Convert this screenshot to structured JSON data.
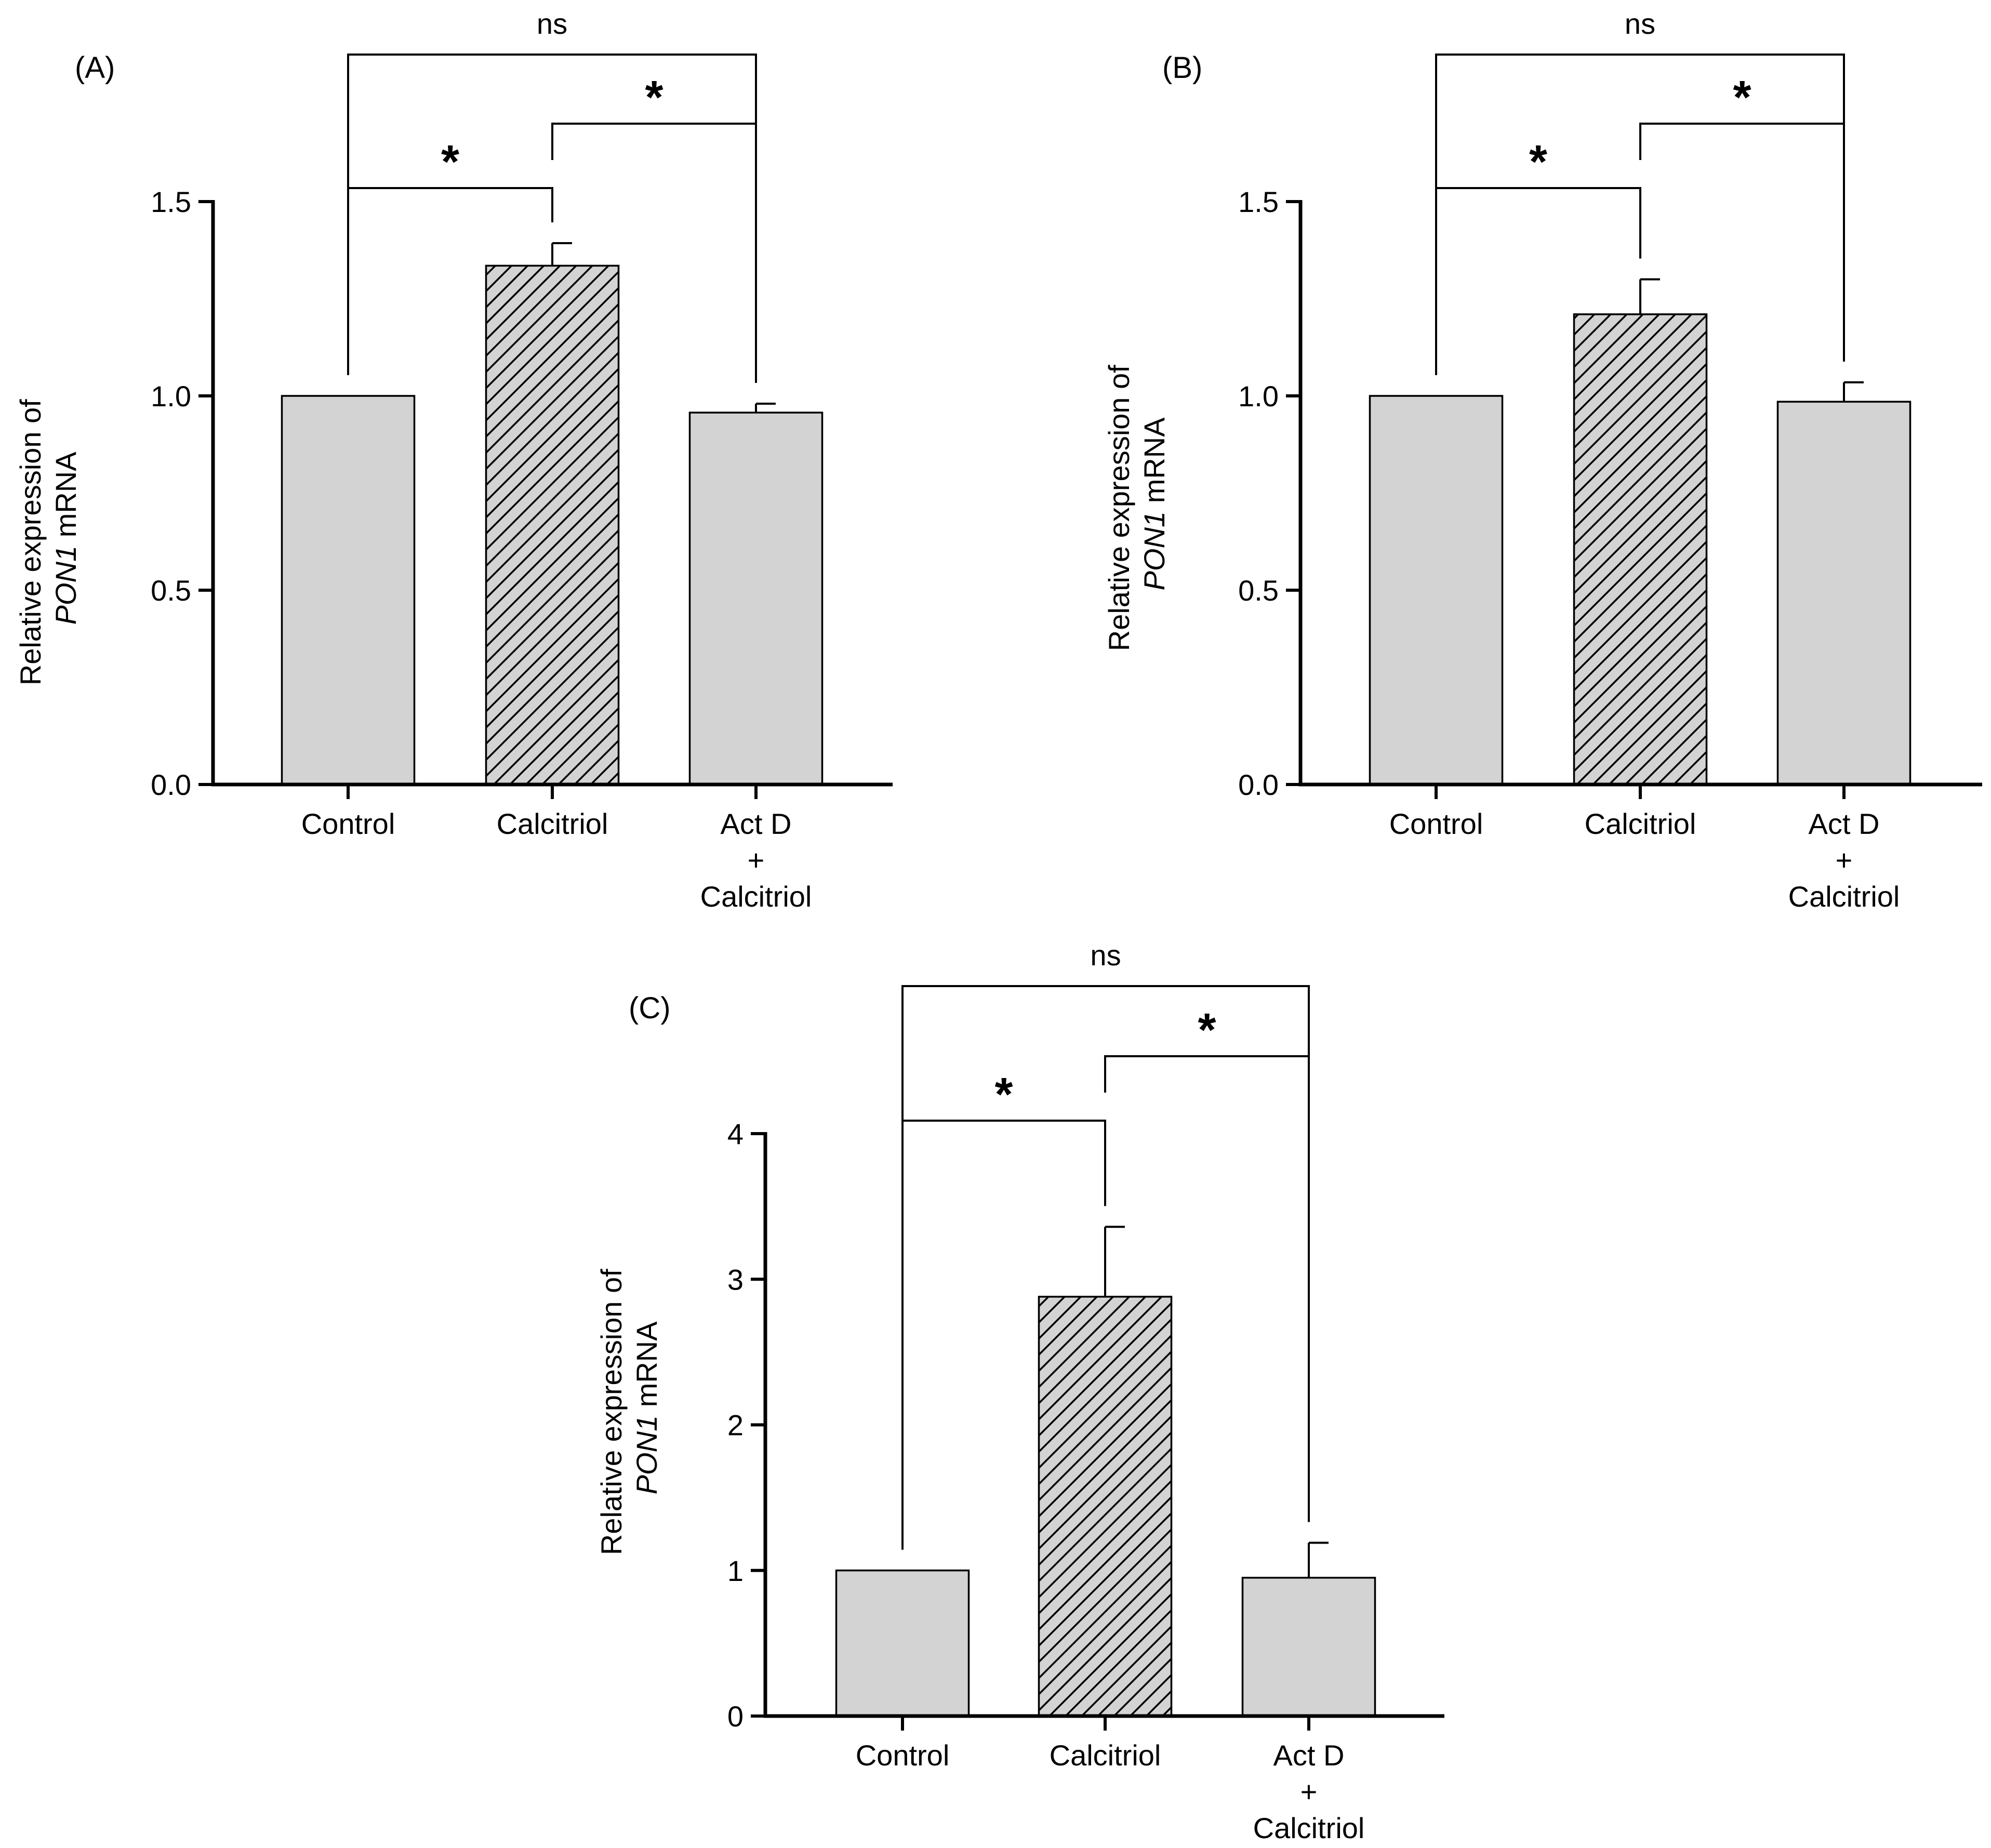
{
  "colors": {
    "bar_fill": "#d3d3d3",
    "hatch_fill": "#d3d3d3",
    "stroke": "#000000",
    "background": "#ffffff"
  },
  "chart_data": [
    {
      "type": "bar",
      "panel_label": "(A)",
      "ylabel_line1": "Relative expression of",
      "ylabel_italic": "PON1",
      "ylabel_rest": " mRNA",
      "categories": [
        {
          "lines": [
            "Control"
          ]
        },
        {
          "lines": [
            "Calcitriol"
          ]
        },
        {
          "lines": [
            "Act D",
            "+",
            "Calcitriol"
          ]
        }
      ],
      "values": [
        1.0,
        1.335,
        0.957
      ],
      "errors": [
        0.0,
        0.058,
        0.023
      ],
      "hatched": [
        false,
        true,
        false
      ],
      "ylim": [
        0,
        1.5
      ],
      "yticks": [
        0.0,
        0.5,
        1.0,
        1.5
      ],
      "ytick_labels": [
        "0.0",
        "0.5",
        "1.0",
        "1.5"
      ],
      "significance": [
        {
          "from": 0,
          "to": 1,
          "label": "*"
        },
        {
          "from": 1,
          "to": 2,
          "label": "*"
        },
        {
          "from": 0,
          "to": 2,
          "label": "ns"
        }
      ]
    },
    {
      "type": "bar",
      "panel_label": "(B)",
      "ylabel_line1": "Relative expression of",
      "ylabel_italic": "PON1",
      "ylabel_rest": " mRNA",
      "categories": [
        {
          "lines": [
            "Control"
          ]
        },
        {
          "lines": [
            "Calcitriol"
          ]
        },
        {
          "lines": [
            "Act D",
            "+",
            "Calcitriol"
          ]
        }
      ],
      "values": [
        1.0,
        1.21,
        0.985
      ],
      "errors": [
        0.0,
        0.09,
        0.05
      ],
      "hatched": [
        false,
        true,
        false
      ],
      "ylim": [
        0,
        1.5
      ],
      "yticks": [
        0.0,
        0.5,
        1.0,
        1.5
      ],
      "ytick_labels": [
        "0.0",
        "0.5",
        "1.0",
        "1.5"
      ],
      "significance": [
        {
          "from": 0,
          "to": 1,
          "label": "*"
        },
        {
          "from": 1,
          "to": 2,
          "label": "*"
        },
        {
          "from": 0,
          "to": 2,
          "label": "ns"
        }
      ]
    },
    {
      "type": "bar",
      "panel_label": "(C)",
      "ylabel_line1": "Relative expression of",
      "ylabel_italic": "PON1",
      "ylabel_rest": " mRNA",
      "categories": [
        {
          "lines": [
            "Control"
          ]
        },
        {
          "lines": [
            "Calcitriol"
          ]
        },
        {
          "lines": [
            "Act D",
            "+",
            "Calcitriol"
          ]
        }
      ],
      "values": [
        1.0,
        2.88,
        0.95
      ],
      "errors": [
        0.0,
        0.48,
        0.24
      ],
      "hatched": [
        false,
        true,
        false
      ],
      "ylim": [
        0,
        4
      ],
      "yticks": [
        0,
        1,
        2,
        3,
        4
      ],
      "ytick_labels": [
        "0",
        "1",
        "2",
        "3",
        "4"
      ],
      "significance": [
        {
          "from": 0,
          "to": 1,
          "label": "*"
        },
        {
          "from": 1,
          "to": 2,
          "label": "*"
        },
        {
          "from": 0,
          "to": 2,
          "label": "ns"
        }
      ]
    }
  ]
}
